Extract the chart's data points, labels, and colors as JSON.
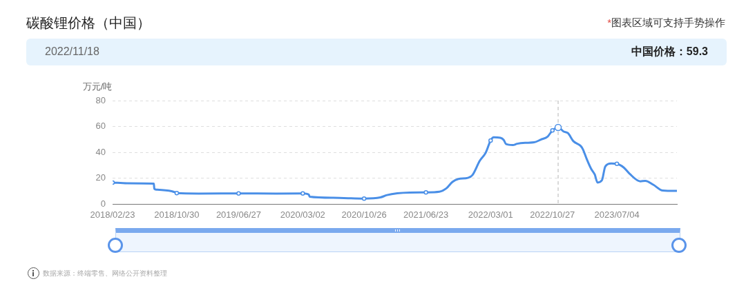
{
  "chart_data": {
    "type": "line",
    "title": "碳酸锂价格（中国）",
    "ylabel": "万元/吨",
    "annotations": [
      "*图表区域可支持手势操作",
      "2022/11/18",
      "中国价格：59.3",
      "数据来源：终端零售、网络公开资料整理"
    ],
    "x": [
      "2018-02-23",
      "2018-04-20",
      "2018-08-02",
      "2018-08-04",
      "2018-08-12",
      "2018-10-10",
      "2018-10-24",
      "2018-10-30",
      "2019-01-23",
      "2019-06-27",
      "2019-11-20",
      "2020-03-02",
      "2020-03-25",
      "2020-03-29",
      "2020-06-28",
      "2020-10-26",
      "2020-12-28",
      "2021-01-23",
      "2021-03-04",
      "2021-04-21",
      "2021-06-23",
      "2021-08-14",
      "2021-09-11",
      "2021-10-04",
      "2021-10-27",
      "2021-12-03",
      "2021-12-21",
      "2022-01-18",
      "2022-02-10",
      "2022-03-01",
      "2022-03-13",
      "2022-04-08",
      "2022-04-21",
      "2022-04-30",
      "2022-05-26",
      "2022-06-12",
      "2022-07-13",
      "2022-08-17",
      "2022-09-12",
      "2022-10-08",
      "2022-10-27",
      "2022-11-18",
      "2022-12-10",
      "2022-12-26",
      "2023-01-16",
      "2023-02-13",
      "2023-02-22",
      "2023-03-08",
      "2023-03-26",
      "2023-04-09",
      "2023-04-20",
      "2023-05-07",
      "2023-05-20",
      "2023-06-12",
      "2023-07-04",
      "2023-07-31",
      "2023-08-23",
      "2023-10-03",
      "2023-10-22",
      "2023-11-23",
      "2023-12-29",
      "2024-02-22"
    ],
    "values": [
      16.8,
      16.2,
      15.9,
      11.9,
      11.3,
      10.1,
      9.2,
      8.6,
      8.3,
      8.4,
      8.3,
      8.4,
      7.6,
      5.8,
      5.0,
      4.4,
      5.3,
      7.1,
      8.5,
      9.1,
      9.2,
      9.7,
      12.4,
      17.3,
      19.5,
      20.4,
      22.7,
      33.6,
      39.8,
      49.2,
      51.7,
      51.3,
      49.6,
      46.4,
      45.7,
      46.7,
      47.4,
      47.8,
      49.9,
      52.2,
      57.0,
      59.3,
      56.1,
      54.9,
      48.7,
      45.1,
      42.5,
      35.4,
      27.4,
      23.0,
      16.8,
      18.6,
      29.2,
      31.5,
      31.2,
      28.3,
      23.4,
      17.7,
      18.1,
      15.0,
      10.6,
      10.3
    ],
    "color": "#4a8fe7",
    "xlim": [
      "2018-02-23",
      "2024-02-22"
    ],
    "xticks": [
      {
        "value": "2018-02-23",
        "label": "2018/02/23"
      },
      {
        "value": "2018-10-30",
        "label": "2018/10/30"
      },
      {
        "value": "2019-06-27",
        "label": "2019/06/27"
      },
      {
        "value": "2020-03-02",
        "label": "2020/03/02"
      },
      {
        "value": "2020-10-26",
        "label": "2020/10/26"
      },
      {
        "value": "2021-06-23",
        "label": "2021/06/23"
      },
      {
        "value": "2022-03-01",
        "label": "2022/03/01"
      },
      {
        "value": "2022-10-27",
        "label": "2022/10/27"
      },
      {
        "value": "2023-07-04",
        "label": "2023/07/04"
      }
    ],
    "ylim": [
      0,
      80
    ],
    "yticks": [
      0,
      20,
      40,
      60,
      80
    ],
    "grid": "y",
    "legend": false,
    "ref_lines": [
      {
        "axis": "x",
        "value": "2022-11-18",
        "color": "#b4b4b4",
        "line_style": "dashed"
      }
    ]
  }
}
